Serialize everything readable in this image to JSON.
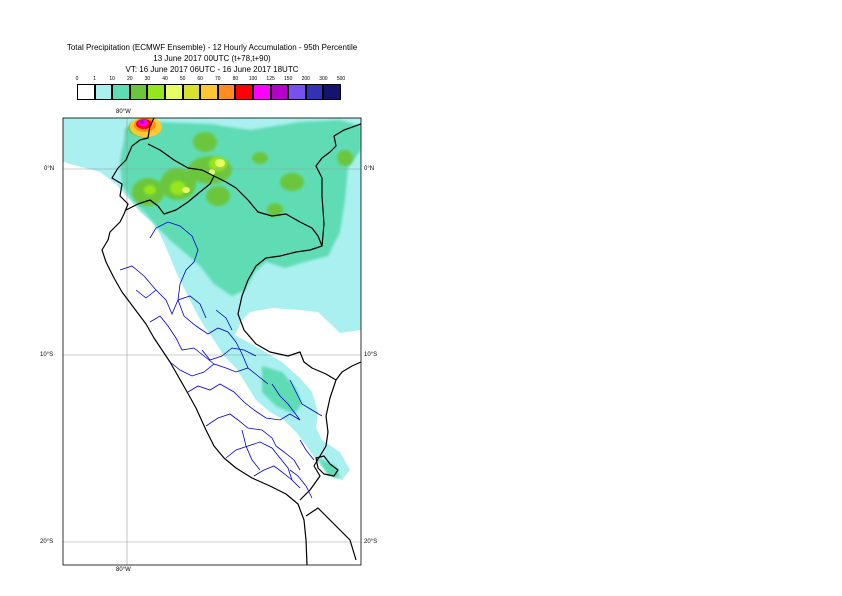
{
  "title": {
    "line1": "Total Precipitation (ECMWF Ensemble) - 12 Hourly Accumulation - 95th Percentile",
    "line2": "13 June 2017 00UTC (t+78,t+90)",
    "line3": "VT: 16 June 2017 06UTC - 16 June 2017 18UTC"
  },
  "legend": {
    "thresholds": [
      "0",
      "1",
      "10",
      "20",
      "30",
      "40",
      "50",
      "60",
      "70",
      "80",
      "100",
      "125",
      "150",
      "200",
      "300",
      "500"
    ],
    "colors": [
      "#ffffff",
      "#aaf0f0",
      "#5fdcb4",
      "#6cc63c",
      "#96e61e",
      "#e6ff64",
      "#d8e032",
      "#ffc832",
      "#ff8c1e",
      "#ff0000",
      "#ff00ff",
      "#b400c8",
      "#7850f0",
      "#3232b4",
      "#14146e"
    ]
  },
  "map": {
    "lon_labels": [
      "80°W",
      "80°W"
    ],
    "lat_labels": {
      "left": [
        "0°N",
        "10°S",
        "20°S"
      ],
      "right": [
        "0°N",
        "10°S",
        "20°S"
      ]
    }
  }
}
